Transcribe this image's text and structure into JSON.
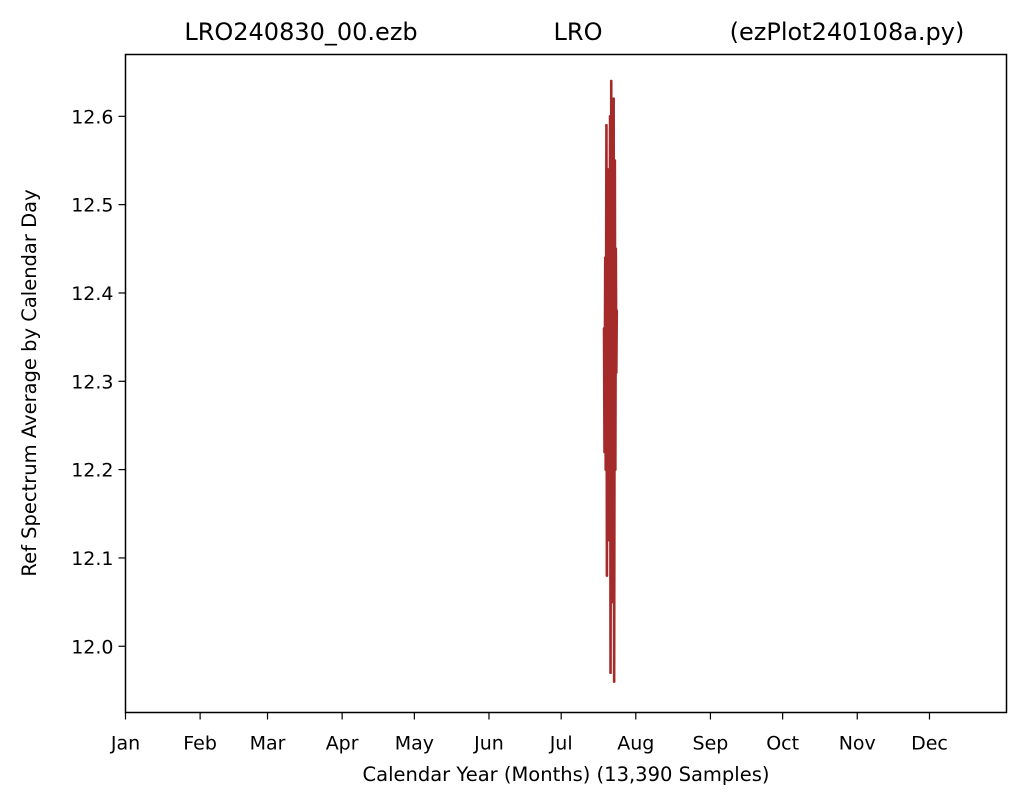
{
  "chart_data": {
    "type": "line",
    "title_left": "LRO240830_00.ezb",
    "title_center": "LRO",
    "title_right": "(ezPlot240108a.py)",
    "xlabel": "Calendar Year (Months) (13,390 Samples)",
    "ylabel": "Ref Spectrum Average by Calendar Day",
    "x_tick_labels": [
      "Jan",
      "Feb",
      "Mar",
      "Apr",
      "May",
      "Jun",
      "Jul",
      "Aug",
      "Sep",
      "Oct",
      "Nov",
      "Dec"
    ],
    "x_tick_days": [
      0,
      31,
      59,
      90,
      120,
      151,
      181,
      212,
      243,
      273,
      304,
      334
    ],
    "xlim": [
      0,
      366
    ],
    "y_ticks": [
      12.0,
      12.1,
      12.2,
      12.3,
      12.4,
      12.5,
      12.6
    ],
    "y_tick_labels": [
      "12.0",
      "12.1",
      "12.2",
      "12.3",
      "12.4",
      "12.5",
      "12.6"
    ],
    "ylim": [
      11.925,
      12.67
    ],
    "grid": false,
    "series": [
      {
        "color": "#a52a2a",
        "x": [
          198.8,
          199.0,
          199.3,
          199.5,
          199.8,
          200.0,
          200.3,
          200.5,
          200.8,
          201.0,
          201.3,
          201.5,
          201.8,
          202.0,
          202.3,
          202.5,
          202.8,
          203.0,
          203.3,
          203.5,
          203.7,
          203.9,
          204.1
        ],
        "y": [
          12.36,
          12.22,
          12.44,
          12.2,
          12.59,
          12.08,
          12.54,
          12.3,
          12.51,
          12.12,
          12.6,
          11.97,
          12.64,
          12.18,
          12.56,
          12.05,
          12.62,
          11.96,
          12.55,
          12.2,
          12.45,
          12.31,
          12.38
        ]
      }
    ]
  }
}
